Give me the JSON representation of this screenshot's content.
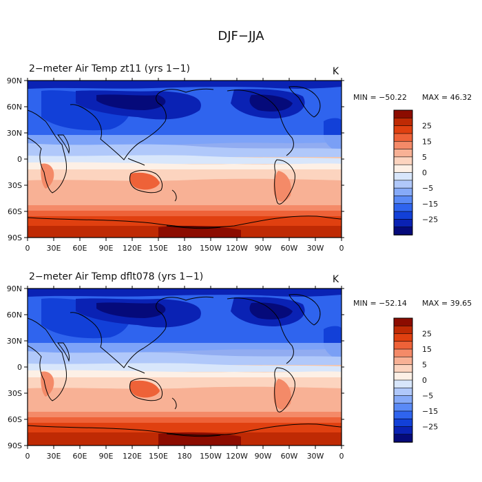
{
  "figure": {
    "title": "DJF−JJA"
  },
  "colorbar": {
    "colors": [
      "#050a7a",
      "#0a22b4",
      "#1240d8",
      "#2f64ee",
      "#5a8af6",
      "#86aaf8",
      "#b0c8fa",
      "#d8e6fb",
      "#fdf0e6",
      "#fcd4bf",
      "#f8b195",
      "#f48a68",
      "#ee6238",
      "#e04010",
      "#bf2a04",
      "#8c0c00"
    ],
    "tick_labels": [
      "25",
      "15",
      "5",
      "0",
      "−5",
      "−15",
      "−25"
    ]
  },
  "panels": [
    {
      "title": "2−meter Air Temp   zt11 (yrs 1−1)",
      "units": "K",
      "min_label": "MIN = −50.22",
      "max_label": "MAX =  46.32"
    },
    {
      "title": "2−meter Air Temp  dflt078 (yrs 1−1)",
      "units": "K",
      "min_label": "MIN = −52.14",
      "max_label": "MAX =  39.65"
    }
  ],
  "axes": {
    "x_tick_labels": [
      "0",
      "30E",
      "60E",
      "90E",
      "120E",
      "150E",
      "180",
      "150W",
      "120W",
      "90W",
      "60W",
      "30W",
      "0"
    ],
    "y_tick_labels": [
      "90N",
      "60N",
      "30N",
      "0",
      "30S",
      "60S",
      "90S"
    ]
  }
}
